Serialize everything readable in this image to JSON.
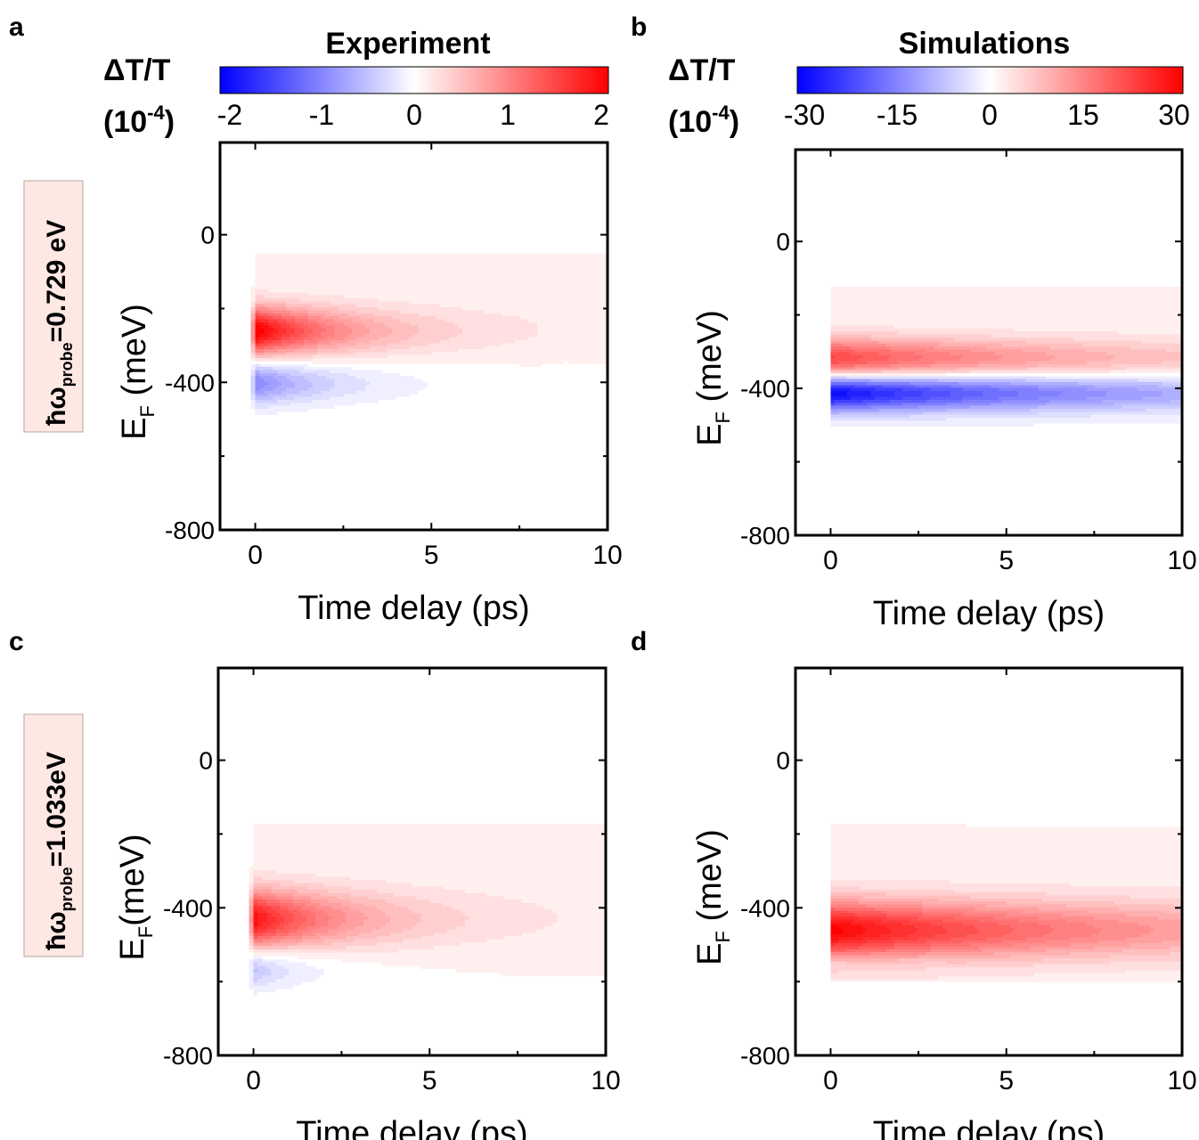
{
  "colorbars": {
    "experiment": {
      "title": "Experiment",
      "ticks": [
        "-2",
        "-1",
        "0",
        "1",
        "2"
      ],
      "range": [
        -2,
        2
      ],
      "unit_line1": "ΔT/T",
      "unit_base": "(10",
      "unit_exp": "-4",
      "unit_close": ")"
    },
    "simulation": {
      "title": "Simulations",
      "ticks": [
        "-30",
        "-15",
        "0",
        "15",
        "30"
      ],
      "range": [
        -30,
        30
      ],
      "unit_line1": "ΔT/T",
      "unit_base": "(10",
      "unit_exp": "-4",
      "unit_close": ")"
    }
  },
  "row_labels": {
    "top": {
      "prefix": "ħω",
      "sub": "probe",
      "value": "=0.729 eV"
    },
    "bottom": {
      "prefix": "ħω",
      "sub": "probe",
      "value": "=1.033eV"
    }
  },
  "colors": {
    "positive": "#ff0000",
    "negative": "#0000ff",
    "zero": "#ffffff",
    "label_box_fill": "#fde8e4",
    "label_box_stroke": "#b9a6a2"
  },
  "chart_data": [
    {
      "panel": "a",
      "type": "heatmap",
      "xlabel": "Time delay (ps)",
      "ylabel_main": "E",
      "ylabel_sub": "F",
      "ylabel_unit": " (meV)",
      "x_ticks": [
        "0",
        "5",
        "10"
      ],
      "y_ticks": [
        "0",
        "-400",
        "-800"
      ],
      "xlim": [
        -1,
        10
      ],
      "ylim": [
        -800,
        250
      ],
      "scale": "experiment",
      "y_data_min": -600,
      "features": [
        {
          "sign": "positive",
          "center_EF": -260,
          "width_meV": 45,
          "peak": 2.0,
          "decay_ps": 2.6,
          "tail": 0.08,
          "reach_ps": 8
        },
        {
          "sign": "negative",
          "center_EF": -400,
          "width_meV": 40,
          "peak": -1.0,
          "decay_ps": 2.2,
          "tail": -0.04,
          "reach_ps": 10
        }
      ]
    },
    {
      "panel": "b",
      "type": "heatmap",
      "xlabel": "Time delay (ps)",
      "ylabel_main": "E",
      "ylabel_sub": "F",
      "ylabel_unit": " (meV)",
      "x_ticks": [
        "0",
        "5",
        "10"
      ],
      "y_ticks": [
        "0",
        "-400",
        "-800"
      ],
      "xlim": [
        -1,
        10
      ],
      "ylim": [
        -800,
        250
      ],
      "scale": "simulation",
      "y_data_min": -600,
      "features": [
        {
          "sign": "positive",
          "center_EF": -320,
          "width_meV": 40,
          "peak": 22,
          "decay_ps": 8,
          "tail": 1.5,
          "reach_ps": 10
        },
        {
          "sign": "negative",
          "center_EF": -410,
          "width_meV": 35,
          "peak": -30,
          "decay_ps": 9,
          "tail": -2,
          "reach_ps": 10
        }
      ]
    },
    {
      "panel": "c",
      "type": "heatmap",
      "xlabel": "Time delay (ps)",
      "ylabel_main": "E",
      "ylabel_sub": "F",
      "ylabel_unit": "(meV)",
      "x_ticks": [
        "0",
        "5",
        "10"
      ],
      "y_ticks": [
        "0",
        "-400",
        "-800"
      ],
      "xlim": [
        -1,
        10
      ],
      "ylim": [
        -800,
        250
      ],
      "scale": "experiment",
      "y_data_min": -690,
      "features": [
        {
          "sign": "positive",
          "center_EF": -430,
          "width_meV": 55,
          "peak": 1.8,
          "decay_ps": 2.8,
          "tail": 0.08,
          "reach_ps": 9
        },
        {
          "sign": "negative",
          "center_EF": -560,
          "width_meV": 40,
          "peak": -0.6,
          "decay_ps": 1.5,
          "tail": -0.03,
          "reach_ps": 10
        }
      ]
    },
    {
      "panel": "d",
      "type": "heatmap",
      "xlabel": "Time delay (ps)",
      "ylabel_main": "E",
      "ylabel_sub": "F",
      "ylabel_unit": " (meV)",
      "x_ticks": [
        "0",
        "5",
        "10"
      ],
      "y_ticks": [
        "0",
        "-400",
        "-800"
      ],
      "xlim": [
        -1,
        10
      ],
      "ylim": [
        -800,
        250
      ],
      "scale": "simulation",
      "y_data_min": -600,
      "features": [
        {
          "sign": "positive",
          "center_EF": -460,
          "width_meV": 55,
          "peak": 28,
          "decay_ps": 9,
          "tail": 1.5,
          "reach_ps": 10
        },
        {
          "sign": "negative",
          "center_EF": -545,
          "width_meV": 12,
          "peak": -3,
          "decay_ps": 2,
          "tail": -0.5,
          "reach_ps": 3
        }
      ]
    }
  ]
}
